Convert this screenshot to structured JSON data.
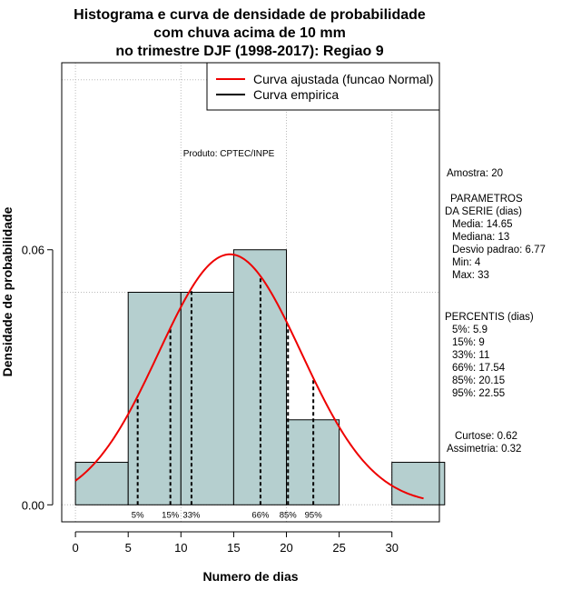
{
  "chart_data": {
    "type": "bar",
    "title_lines": [
      "Histograma e curva de densidade de probabilidade",
      "com chuva acima de 10 mm",
      "no trimestre DJF (1998-2017): Regiao 9"
    ],
    "xlabel": "Numero de dias",
    "ylabel": "Densidade de probabilidade",
    "xlim": [
      -1.3,
      34.5
    ],
    "ylim": [
      -0.004,
      0.104
    ],
    "x_ticks": [
      0,
      5,
      10,
      15,
      20,
      25,
      30
    ],
    "y_ticks": [
      {
        "v": 0,
        "label": "0.00"
      },
      {
        "v": 0.06,
        "label": "0.06"
      }
    ],
    "grid": true,
    "bins": [
      {
        "x0": 0,
        "x1": 5,
        "density": 0.01
      },
      {
        "x0": 5,
        "x1": 10,
        "density": 0.05
      },
      {
        "x0": 10,
        "x1": 15,
        "density": 0.05
      },
      {
        "x0": 15,
        "x1": 20,
        "density": 0.06
      },
      {
        "x0": 20,
        "x1": 25,
        "density": 0.02
      },
      {
        "x0": 25,
        "x1": 30,
        "density": 0.0
      },
      {
        "x0": 30,
        "x1": 35,
        "density": 0.01
      }
    ],
    "normal_fit": {
      "mean": 14.65,
      "sd": 6.77,
      "x_from": 0,
      "x_to": 33,
      "color": "#ee0000"
    },
    "percentile_lines": [
      {
        "label": "5%",
        "x": 5.9
      },
      {
        "label": "15%",
        "x": 9
      },
      {
        "label": "33%",
        "x": 11
      },
      {
        "label": "66%",
        "x": 17.54
      },
      {
        "label": "85%",
        "x": 20.15
      },
      {
        "label": "95%",
        "x": 22.55
      }
    ],
    "legend": {
      "position": "top-right",
      "entries": [
        {
          "label": "Curva ajustada (funcao Normal)",
          "color": "#ee0000"
        },
        {
          "label": "Curva empirica",
          "color": "#000000"
        }
      ]
    },
    "annotation": "Produto: CPTEC/INPE",
    "bar_color": "#b5cfcf"
  },
  "side_text": {
    "amostra": "Amostra: 20",
    "param_title_1": "PARAMETROS",
    "param_title_2": "DA SERIE (dias)",
    "params": [
      "Media: 14.65",
      "Mediana: 13",
      "Desvio padrao: 6.77",
      "Min: 4",
      "Max: 33"
    ],
    "percentis_title": "PERCENTIS (dias)",
    "percentis": [
      "5%: 5.9",
      "15%: 9",
      "33%: 11",
      "66%: 17.54",
      "85%: 20.15",
      "95%: 22.55"
    ],
    "curtose": "Curtose: 0.62",
    "assimetria": "Assimetria: 0.32"
  }
}
